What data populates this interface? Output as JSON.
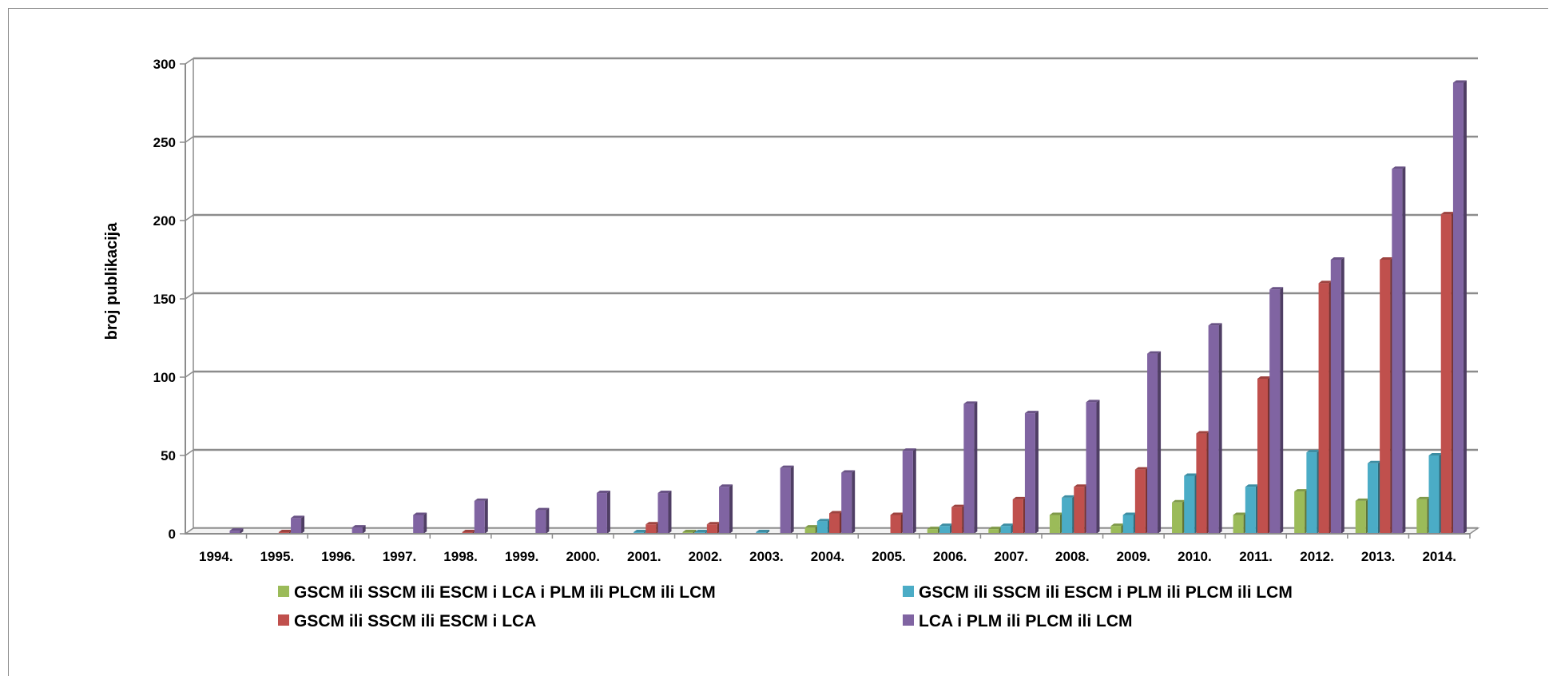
{
  "chart_data": {
    "type": "bar",
    "title": "",
    "xlabel": "",
    "ylabel": "broj publikacija",
    "ylim": [
      0,
      300
    ],
    "yticks": [
      0,
      50,
      100,
      150,
      200,
      250,
      300
    ],
    "grid": true,
    "legend_position": "bottom",
    "categories": [
      "1994.",
      "1995.",
      "1996.",
      "1997.",
      "1998.",
      "1999.",
      "2000.",
      "2001.",
      "2002.",
      "2003.",
      "2004.",
      "2005.",
      "2006.",
      "2007.",
      "2008.",
      "2009.",
      "2010.",
      "2011.",
      "2012.",
      "2013.",
      "2014."
    ],
    "series": [
      {
        "name": "GSCM ili SSCM ili ESCM i LCA i PLM ili PLCM ili LCM",
        "color": "#9bbb59",
        "values": [
          0,
          0,
          0,
          0,
          0,
          0,
          0,
          0,
          1,
          0,
          4,
          0,
          3,
          3,
          12,
          5,
          20,
          12,
          27,
          21,
          22
        ]
      },
      {
        "name": "GSCM ili SSCM ili ESCM i PLM ili PLCM ili LCM",
        "color": "#4bacc6",
        "values": [
          0,
          0,
          0,
          0,
          0,
          0,
          0,
          1,
          1,
          1,
          8,
          0,
          5,
          5,
          23,
          12,
          37,
          30,
          52,
          45,
          50
        ]
      },
      {
        "name": "GSCM ili SSCM ili ESCM i LCA",
        "color": "#c0504d",
        "values": [
          0,
          1,
          0,
          0,
          1,
          0,
          0,
          6,
          6,
          0,
          13,
          12,
          17,
          22,
          30,
          41,
          64,
          99,
          160,
          175,
          204
        ]
      },
      {
        "name": "LCA i PLM ili PLCM ili LCM",
        "color": "#8064a2",
        "values": [
          2,
          10,
          4,
          12,
          21,
          15,
          26,
          26,
          30,
          42,
          39,
          53,
          83,
          77,
          84,
          115,
          133,
          156,
          175,
          233,
          288
        ]
      }
    ]
  }
}
